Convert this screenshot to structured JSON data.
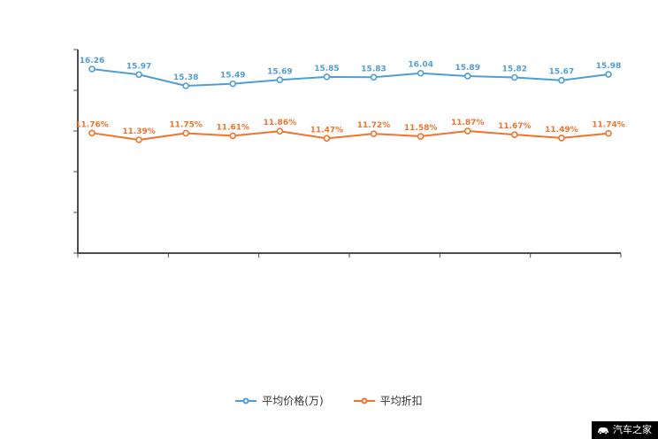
{
  "chart_data": {
    "type": "line",
    "x": [
      1,
      2,
      3,
      4,
      5,
      6,
      7,
      8,
      9,
      10,
      11,
      12
    ],
    "x_tick_labels_visible": false,
    "y_axis": {
      "tick_count": 6,
      "labels_visible": false
    },
    "grid": false,
    "legend_position": "bottom",
    "series": [
      {
        "name": "平均价格(万)",
        "color": "#4f9ed8",
        "values": [
          16.26,
          15.97,
          15.38,
          15.49,
          15.69,
          15.85,
          15.83,
          16.04,
          15.89,
          15.82,
          15.67,
          15.98
        ],
        "labels": [
          "16.26",
          "15.97",
          "15.38",
          "15.49",
          "15.69",
          "15.85",
          "15.83",
          "16.04",
          "15.89",
          "15.82",
          "15.67",
          "15.98"
        ]
      },
      {
        "name": "平均折扣",
        "color": "#f2742c",
        "values": [
          11.76,
          11.39,
          11.75,
          11.61,
          11.86,
          11.47,
          11.72,
          11.58,
          11.87,
          11.67,
          11.49,
          11.74
        ],
        "labels": [
          "11.76%",
          "11.39%",
          "11.75%",
          "11.61%",
          "11.86%",
          "11.47%",
          "11.72%",
          "11.58%",
          "11.87%",
          "11.67%",
          "11.49%",
          "11.74%"
        ]
      }
    ]
  },
  "legend": {
    "items": [
      {
        "label": "平均价格(万)",
        "color": "#4f9ed8"
      },
      {
        "label": "平均折扣",
        "color": "#f2742c"
      }
    ]
  },
  "watermark": {
    "text": "汽车之家",
    "background": "#000000",
    "text_color": "#ffffff"
  },
  "colors": {
    "axis": "#4d4d4d",
    "background": "#ffffff"
  }
}
